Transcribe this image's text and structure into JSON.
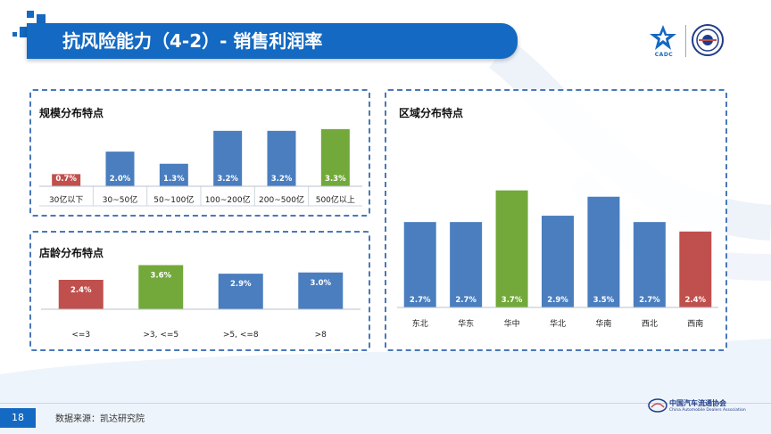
{
  "header": {
    "title": "抗风险能力（4-2）- 销售利润率"
  },
  "logos": {
    "cadc_text": "CADC",
    "org_cn": "中国汽车流通协会",
    "org_en": "China Automobile Dealers Association"
  },
  "colors": {
    "blue": "#4a7ebf",
    "green": "#72a93a",
    "red": "#c0504d",
    "accent": "#1469c2"
  },
  "footer": {
    "page": "18",
    "source": "数据来源：凯达研究院"
  },
  "chart_data": [
    {
      "id": "scale",
      "type": "bar",
      "title": "规模分布特点",
      "categories": [
        "30亿以下",
        "30~50亿",
        "50~100亿",
        "100~200亿",
        "200~500亿",
        "500亿以上"
      ],
      "values": [
        0.7,
        2.0,
        1.3,
        3.2,
        3.2,
        3.3
      ],
      "labels": [
        "0.7%",
        "2.0%",
        "1.3%",
        "3.2%",
        "3.2%",
        "3.3%"
      ],
      "colors": [
        "red",
        "blue",
        "blue",
        "blue",
        "blue",
        "green"
      ],
      "ylim": [
        0,
        3.5
      ],
      "unit": "%"
    },
    {
      "id": "age",
      "type": "bar",
      "title": "店龄分布特点",
      "categories": [
        "<=3",
        ">3, <=5",
        ">5, <=8",
        ">8"
      ],
      "values": [
        2.4,
        3.6,
        2.9,
        3.0
      ],
      "labels": [
        "2.4%",
        "3.6%",
        "2.9%",
        "3.0%"
      ],
      "colors": [
        "red",
        "green",
        "blue",
        "blue"
      ],
      "ylim": [
        0,
        4.0
      ],
      "unit": "%"
    },
    {
      "id": "region",
      "type": "bar",
      "title": "区域分布特点",
      "categories": [
        "东北",
        "华东",
        "华中",
        "华北",
        "华南",
        "西北",
        "西南"
      ],
      "values": [
        2.7,
        2.7,
        3.7,
        2.9,
        3.5,
        2.7,
        2.4
      ],
      "labels": [
        "2.7%",
        "2.7%",
        "3.7%",
        "2.9%",
        "3.5%",
        "2.7%",
        "2.4%"
      ],
      "colors": [
        "blue",
        "blue",
        "green",
        "blue",
        "blue",
        "blue",
        "red"
      ],
      "ylim": [
        0,
        4.0
      ],
      "unit": "%"
    }
  ]
}
